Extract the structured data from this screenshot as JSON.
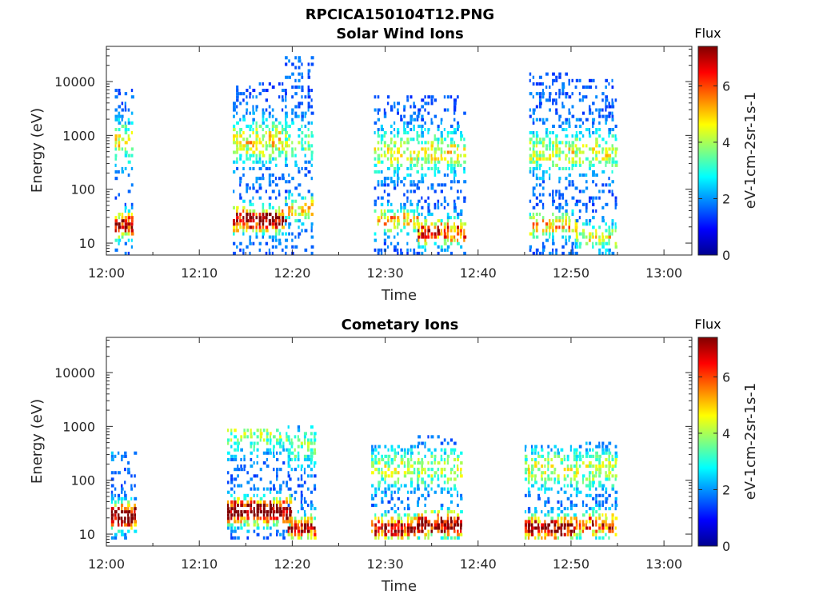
{
  "figure_title": "RPCICA150104T12.PNG",
  "colors": {
    "axis": "#262626",
    "background": "#ffffff",
    "colormap": "jet"
  },
  "chart_data": [
    {
      "type": "heatmap",
      "title": "Solar Wind Ions",
      "xlabel": "Time",
      "ylabel": "Energy (eV)",
      "x_ticks": [
        "12:00",
        "12:10",
        "12:20",
        "12:30",
        "12:40",
        "12:50",
        "13:00"
      ],
      "y_ticks": [
        "10",
        "100",
        "1000",
        "10000"
      ],
      "y_scale": "log",
      "ylim": [
        6,
        45000
      ],
      "xlim_minutes": [
        0,
        63
      ],
      "colorbar": {
        "title": "Flux",
        "label": "eV-1cm-2sr-1s-1",
        "ticks": [
          "0",
          "2",
          "4",
          "6"
        ],
        "range": [
          0,
          7.4
        ]
      },
      "bursts": [
        {
          "t_start": 0.9,
          "t_end": 2.7,
          "e_min": 6,
          "e_max": 7000,
          "peak_energy": 20,
          "peak_flux": 5.5,
          "secondary_energy": 700,
          "secondary_flux": 3.0
        },
        {
          "t_start": 13.6,
          "t_end": 19.5,
          "e_min": 6,
          "e_max": 9000,
          "peak_energy": 25,
          "peak_flux": 6.0,
          "secondary_energy": 700,
          "secondary_flux": 3.2
        },
        {
          "t_start": 19.2,
          "t_end": 22.3,
          "e_min": 6,
          "e_max": 26000,
          "peak_energy": 40,
          "peak_flux": 3.5,
          "secondary_energy": 700,
          "secondary_flux": 2.0
        },
        {
          "t_start": 28.8,
          "t_end": 33.5,
          "e_min": 6,
          "e_max": 5000,
          "peak_energy": 25,
          "peak_flux": 3.5,
          "secondary_energy": 450,
          "secondary_flux": 2.8
        },
        {
          "t_start": 33.5,
          "t_end": 38.5,
          "e_min": 6,
          "e_max": 5000,
          "peak_energy": 15,
          "peak_flux": 4.8,
          "secondary_energy": 450,
          "secondary_flux": 2.8
        },
        {
          "t_start": 45.5,
          "t_end": 50.5,
          "e_min": 6,
          "e_max": 14000,
          "peak_energy": 20,
          "peak_flux": 3.5,
          "secondary_energy": 450,
          "secondary_flux": 2.7
        },
        {
          "t_start": 50.5,
          "t_end": 54.8,
          "e_min": 6,
          "e_max": 10000,
          "peak_energy": 12,
          "peak_flux": 3.0,
          "secondary_energy": 450,
          "secondary_flux": 2.7
        }
      ]
    },
    {
      "type": "heatmap",
      "title": "Cometary Ions",
      "xlabel": "Time",
      "ylabel": "Energy (eV)",
      "x_ticks": [
        "12:00",
        "12:10",
        "12:20",
        "12:30",
        "12:40",
        "12:50",
        "13:00"
      ],
      "y_ticks": [
        "10",
        "100",
        "1000",
        "10000"
      ],
      "y_scale": "log",
      "ylim": [
        6,
        45000
      ],
      "xlim_minutes": [
        0,
        63
      ],
      "colorbar": {
        "title": "Flux",
        "label": "eV-1cm-2sr-1s-1",
        "ticks": [
          "0",
          "2",
          "4",
          "6"
        ],
        "range": [
          0,
          7.4
        ]
      },
      "bursts": [
        {
          "t_start": 0.5,
          "t_end": 3.3,
          "e_min": 7,
          "e_max": 300,
          "peak_energy": 20,
          "peak_flux": 6.8,
          "secondary_energy": 800,
          "secondary_flux": 2.0
        },
        {
          "t_start": 13.0,
          "t_end": 19.8,
          "e_min": 7,
          "e_max": 800,
          "peak_energy": 25,
          "peak_flux": 7.0,
          "secondary_energy": 700,
          "secondary_flux": 2.2
        },
        {
          "t_start": 19.5,
          "t_end": 22.5,
          "e_min": 7,
          "e_max": 1000,
          "peak_energy": 12,
          "peak_flux": 5.2,
          "secondary_energy": 400,
          "secondary_flux": 2.0
        },
        {
          "t_start": 28.5,
          "t_end": 33.5,
          "e_min": 7,
          "e_max": 400,
          "peak_energy": 12,
          "peak_flux": 5.5,
          "secondary_energy": 150,
          "secondary_flux": 2.5
        },
        {
          "t_start": 33.5,
          "t_end": 38.3,
          "e_min": 7,
          "e_max": 600,
          "peak_energy": 14,
          "peak_flux": 6.2,
          "secondary_energy": 150,
          "secondary_flux": 2.5
        },
        {
          "t_start": 45.0,
          "t_end": 50.5,
          "e_min": 7,
          "e_max": 400,
          "peak_energy": 12,
          "peak_flux": 5.8,
          "secondary_energy": 150,
          "secondary_flux": 2.5
        },
        {
          "t_start": 50.5,
          "t_end": 54.8,
          "e_min": 7,
          "e_max": 500,
          "peak_energy": 14,
          "peak_flux": 4.8,
          "secondary_energy": 150,
          "secondary_flux": 2.5
        }
      ]
    }
  ]
}
